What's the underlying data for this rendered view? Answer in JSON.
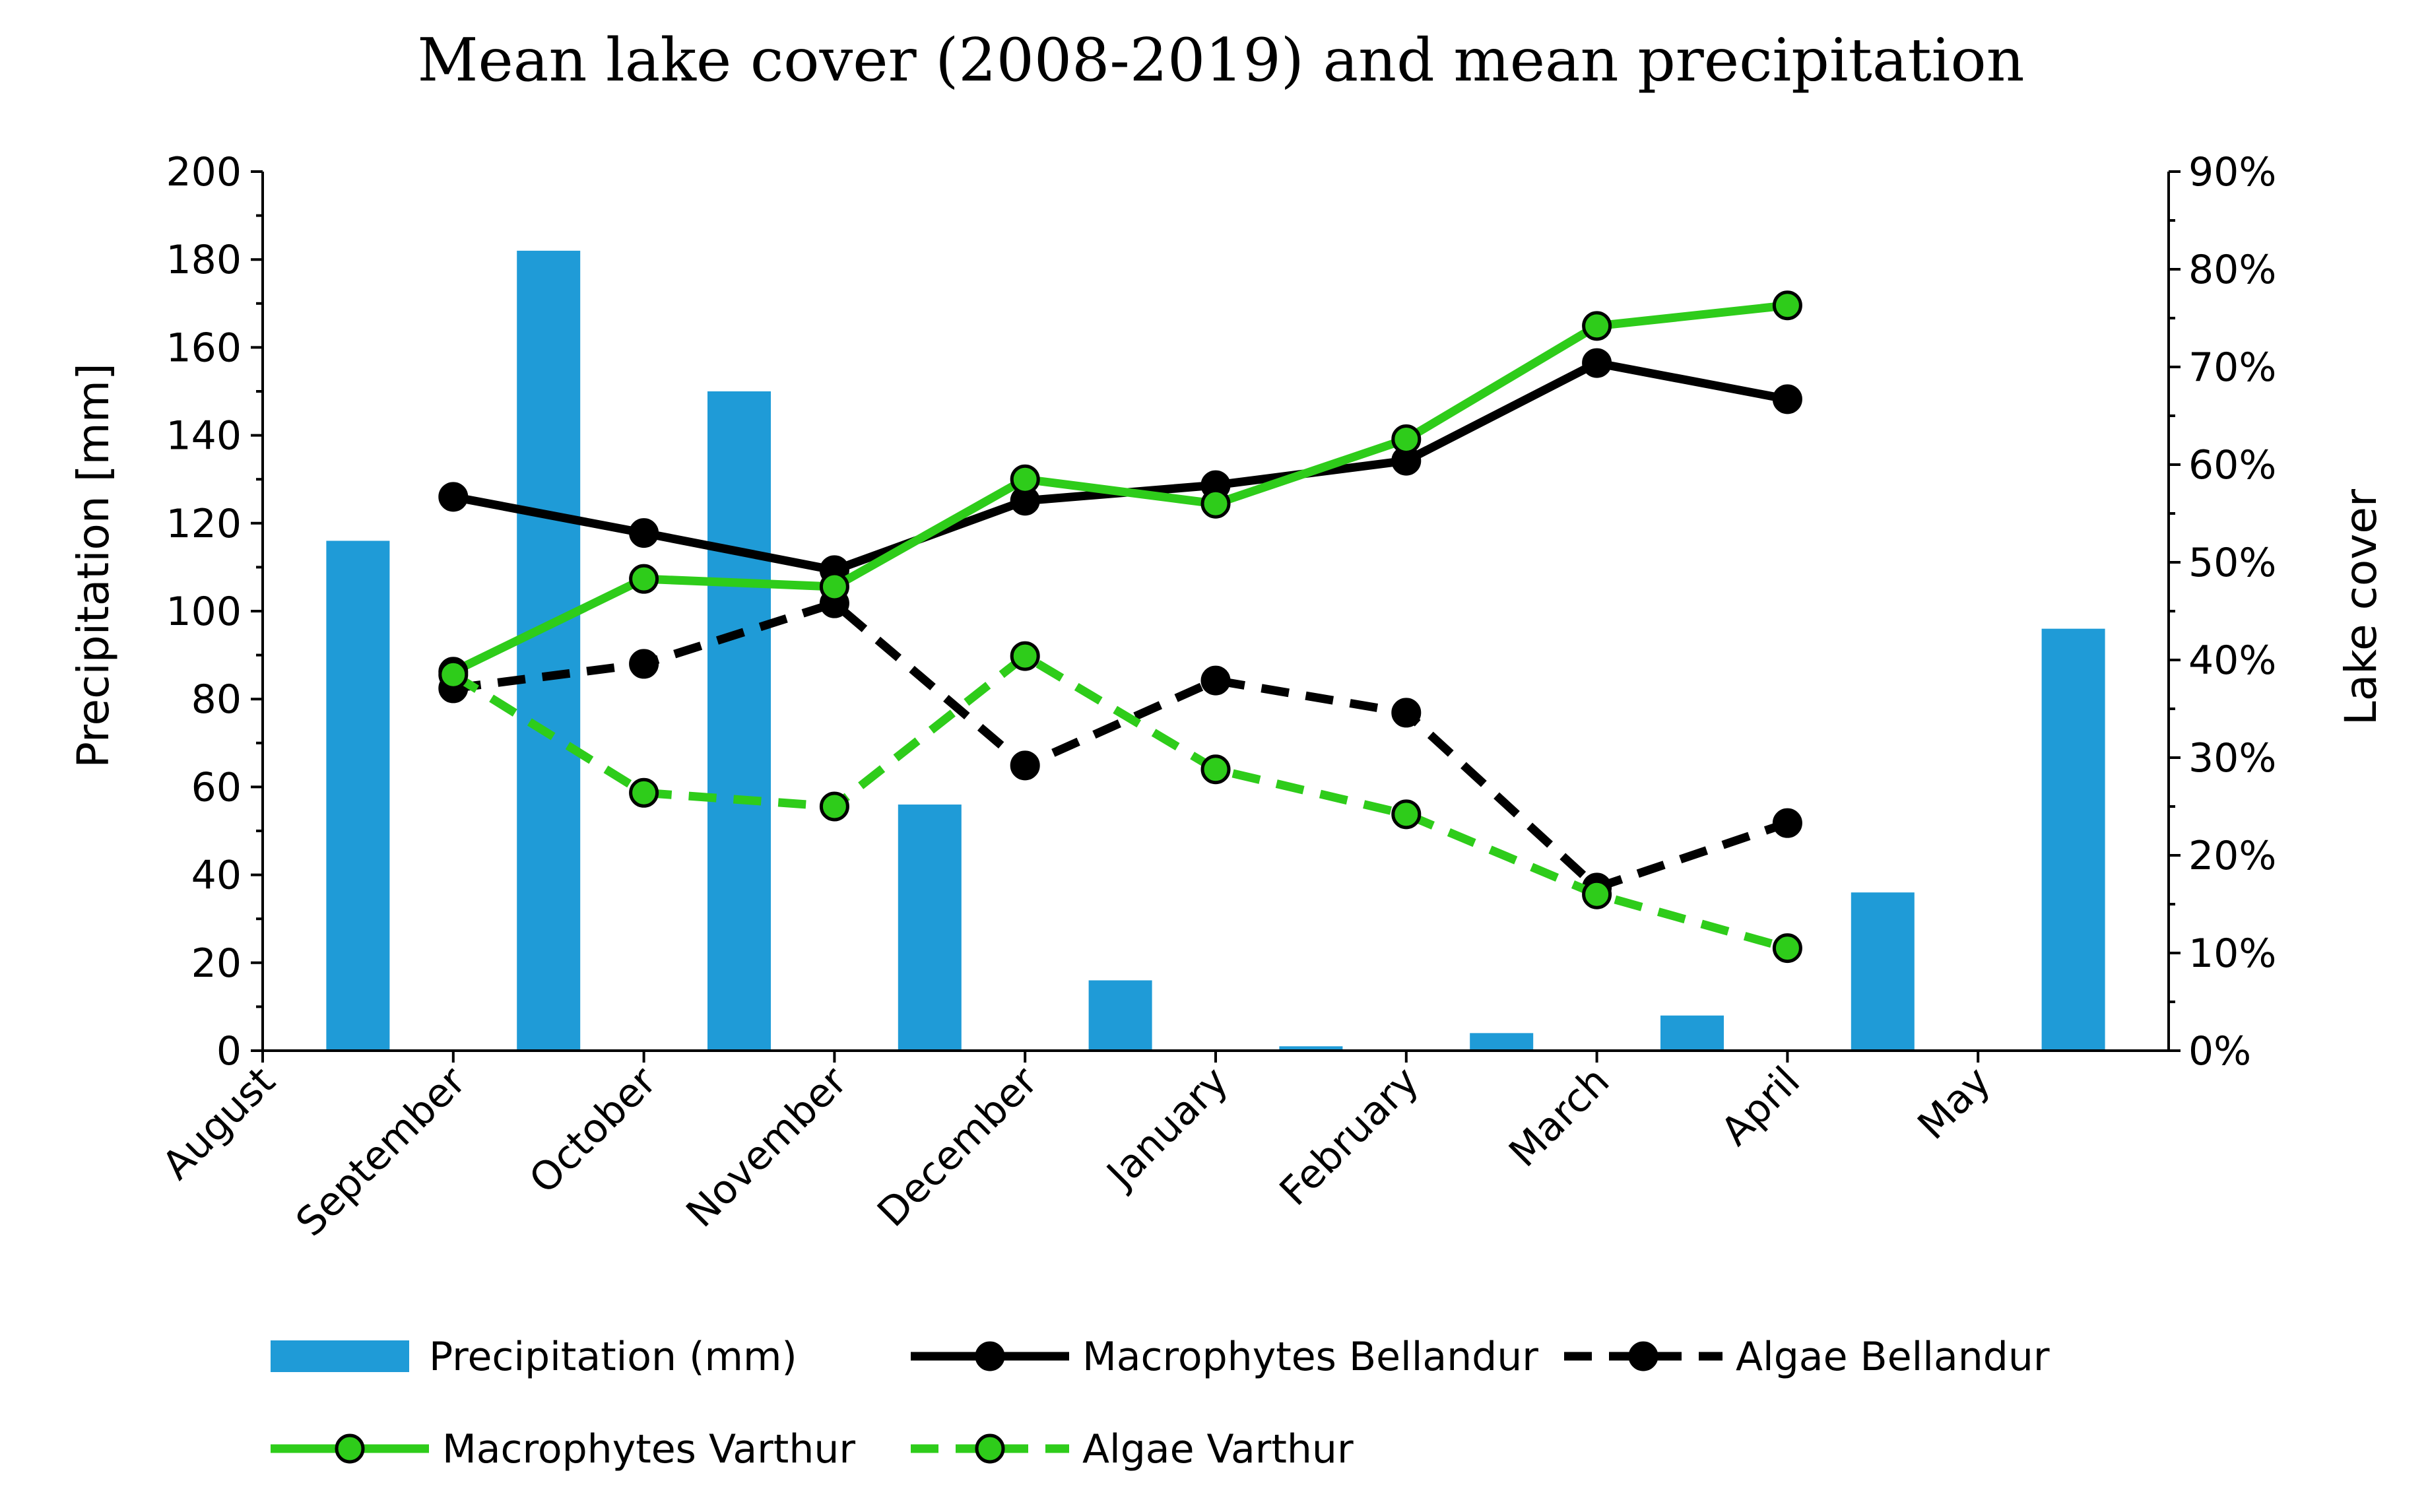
{
  "chart_data": {
    "type": "bar",
    "title": "Mean lake cover (2008-2019) and mean precipitation",
    "xlabel": "",
    "ylabel": "Precipitation [mm]",
    "y2label": "Lake cover",
    "ylim": [
      0,
      200
    ],
    "yticks": [
      "0",
      "20",
      "40",
      "60",
      "80",
      "100",
      "120",
      "140",
      "160",
      "180",
      "200"
    ],
    "y2lim": [
      0,
      90
    ],
    "y2ticks": [
      "0%",
      "10%",
      "20%",
      "30%",
      "40%",
      "50%",
      "60%",
      "70%",
      "80%",
      "90%"
    ],
    "categories": [
      "August",
      "September",
      "October",
      "November",
      "December",
      "January",
      "February",
      "March",
      "April",
      "May"
    ],
    "grid": false,
    "legend_position": "bottom",
    "colors": {
      "precip": "#1f9bd7",
      "bellandur": "#000000",
      "varthur": "#2ecc1a"
    },
    "series": [
      {
        "name": "Precipitation (mm)",
        "kind": "bar",
        "axis": "left",
        "color": "#1f9bd7",
        "values": [
          116,
          182,
          150,
          56,
          16,
          1,
          4,
          8,
          36,
          96
        ]
      },
      {
        "name": "Macrophytes Bellandur",
        "kind": "line",
        "axis": "right",
        "dash": false,
        "line_color": "#000000",
        "marker_color": "#000000",
        "values": [
          null,
          56.7,
          53.0,
          49.2,
          56.3,
          57.9,
          60.4,
          70.4,
          66.7,
          null
        ]
      },
      {
        "name": "Algae Bellandur",
        "kind": "line",
        "axis": "right",
        "dash": true,
        "line_color": "#000000",
        "marker_color": "#000000",
        "values": [
          null,
          37.1,
          39.6,
          45.8,
          29.2,
          37.9,
          34.6,
          16.7,
          23.3,
          null
        ]
      },
      {
        "name": "Macrophytes Varthur",
        "kind": "line",
        "axis": "right",
        "dash": false,
        "line_color": "#2ecc1a",
        "marker_color": "#2ecc1a",
        "values": [
          null,
          38.8,
          48.3,
          47.5,
          58.5,
          56.0,
          62.6,
          74.2,
          76.3,
          null
        ]
      },
      {
        "name": "Algae Varthur",
        "kind": "line",
        "axis": "right",
        "dash": true,
        "line_color": "#2ecc1a",
        "marker_color": "#2ecc1a",
        "values": [
          null,
          38.5,
          26.4,
          25.0,
          40.4,
          28.8,
          24.2,
          16.0,
          10.5,
          null
        ]
      }
    ]
  }
}
